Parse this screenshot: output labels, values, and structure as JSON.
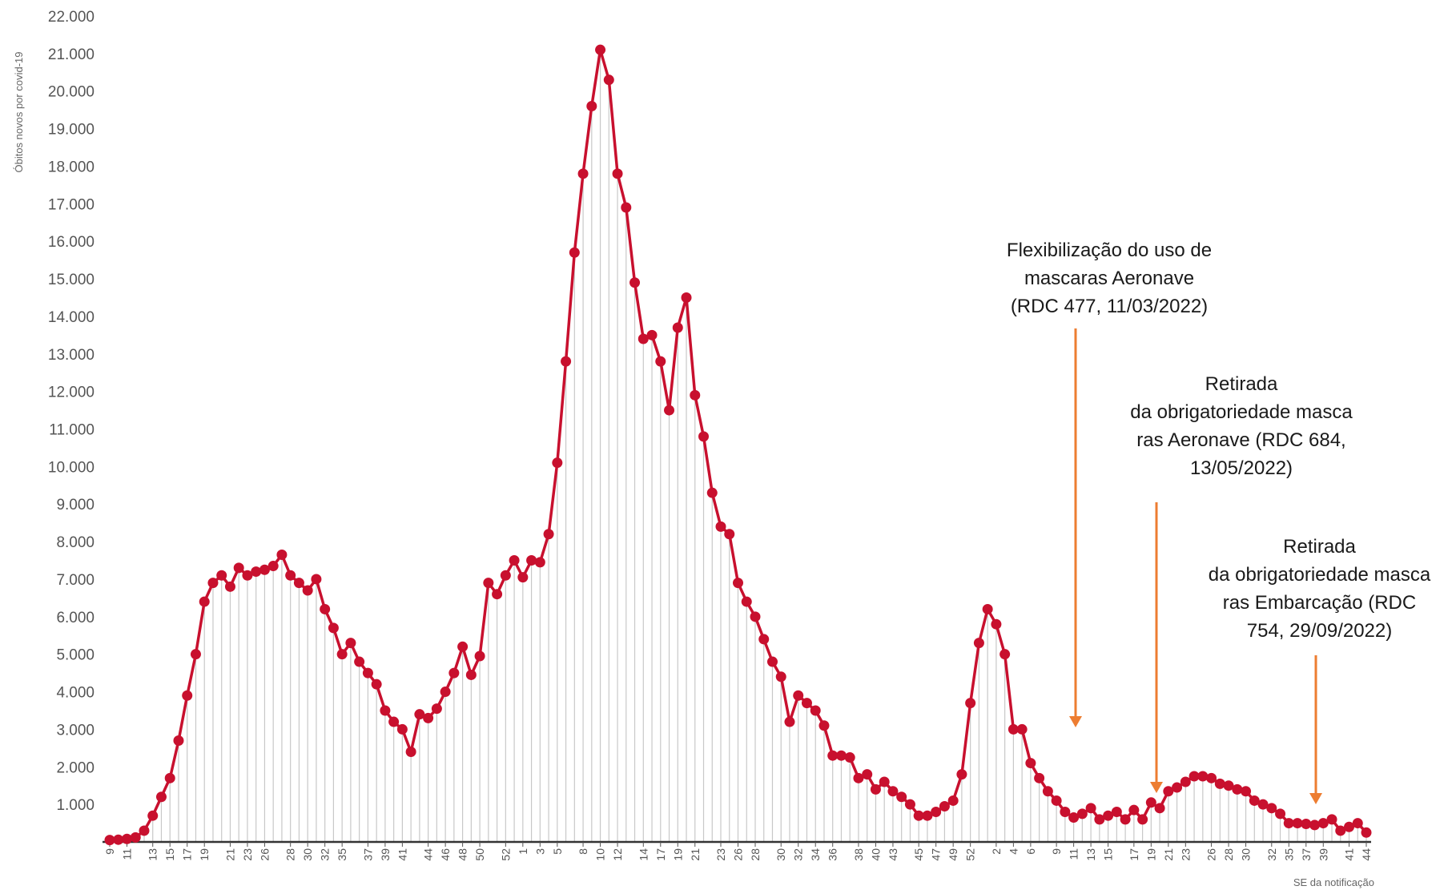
{
  "chart_data": {
    "type": "line",
    "ylabel": "Óbitos novos por covid-19",
    "xlabel": "SE da notificação",
    "ylim": [
      0,
      22000
    ],
    "y_ticks": [
      "1.000",
      "2.000",
      "3.000",
      "4.000",
      "5.000",
      "6.000",
      "7.000",
      "8.000",
      "9.000",
      "10.000",
      "11.000",
      "12.000",
      "13.000",
      "14.000",
      "15.000",
      "16.000",
      "17.000",
      "18.000",
      "19.000",
      "20.000",
      "21.000",
      "22.000"
    ],
    "x_tick_labels": [
      "9",
      "11",
      "13",
      "15",
      "17",
      "19",
      "21",
      "23",
      "26",
      "28",
      "30",
      "32",
      "35",
      "37",
      "39",
      "41",
      "44",
      "46",
      "48",
      "50",
      "52",
      "1",
      "3",
      "5",
      "8",
      "10",
      "12",
      "14",
      "17",
      "19",
      "21",
      "23",
      "26",
      "28",
      "30",
      "32",
      "34",
      "36",
      "38",
      "40",
      "43",
      "45",
      "47",
      "49",
      "52",
      "2",
      "4",
      "6",
      "9",
      "11",
      "13",
      "15",
      "17",
      "19",
      "21",
      "23",
      "26",
      "28",
      "30",
      "32",
      "35",
      "37",
      "39",
      "41",
      "44"
    ],
    "grid": "vertical lines at each data point",
    "series": [
      {
        "color": "#c8102e",
        "values": [
          50,
          60,
          80,
          120,
          300,
          700,
          1200,
          1700,
          2700,
          3900,
          5000,
          6400,
          6900,
          7100,
          6800,
          7300,
          7100,
          7200,
          7250,
          7350,
          7650,
          7100,
          6900,
          6700,
          7000,
          6200,
          5700,
          5000,
          5300,
          4800,
          4500,
          4200,
          3500,
          3200,
          3000,
          2400,
          3400,
          3300,
          3550,
          4000,
          4500,
          5200,
          4450,
          4950,
          6900,
          6600,
          7100,
          7500,
          7050,
          7500,
          7450,
          8200,
          10100,
          12800,
          15700,
          17800,
          19600,
          21100,
          20300,
          17800,
          16900,
          14900,
          13400,
          13500,
          12800,
          11500,
          13700,
          14500,
          11900,
          10800,
          9300,
          8400,
          8200,
          6900,
          6400,
          6000,
          5400,
          4800,
          4400,
          3200,
          3900,
          3700,
          3500,
          3100,
          2300,
          2300,
          2250,
          1700,
          1800,
          1400,
          1600,
          1350,
          1200,
          1000,
          700,
          700,
          800,
          950,
          1100,
          1800,
          3700,
          5300,
          6200,
          5800,
          5000,
          3000,
          3000,
          2100,
          1700,
          1350,
          1100,
          800,
          650,
          750,
          900,
          600,
          700,
          800,
          600,
          850,
          600,
          1050,
          900,
          1350,
          1450,
          1600,
          1750,
          1750,
          1700,
          1550,
          1500,
          1400,
          1350,
          1100,
          1000,
          900,
          750,
          500,
          500,
          480,
          450,
          500,
          600,
          300,
          400,
          500,
          250
        ]
      }
    ],
    "annotations": [
      {
        "lines": [
          "Flexibilização do uso de",
          "mascaras Aeronave",
          "(RDC 477, 11/03/2022)"
        ],
        "arrow_color": "#ed7d31"
      },
      {
        "lines": [
          "Retirada",
          "da obrigatoriedade masca",
          "ras Aeronave (RDC  684,",
          "13/05/2022)"
        ],
        "arrow_color": "#ed7d31"
      },
      {
        "lines": [
          "Retirada",
          "da obrigatoriedade masca",
          "ras   Embarcação (RDC",
          "754, 29/09/2022)"
        ],
        "arrow_color": "#ed7d31"
      }
    ]
  }
}
